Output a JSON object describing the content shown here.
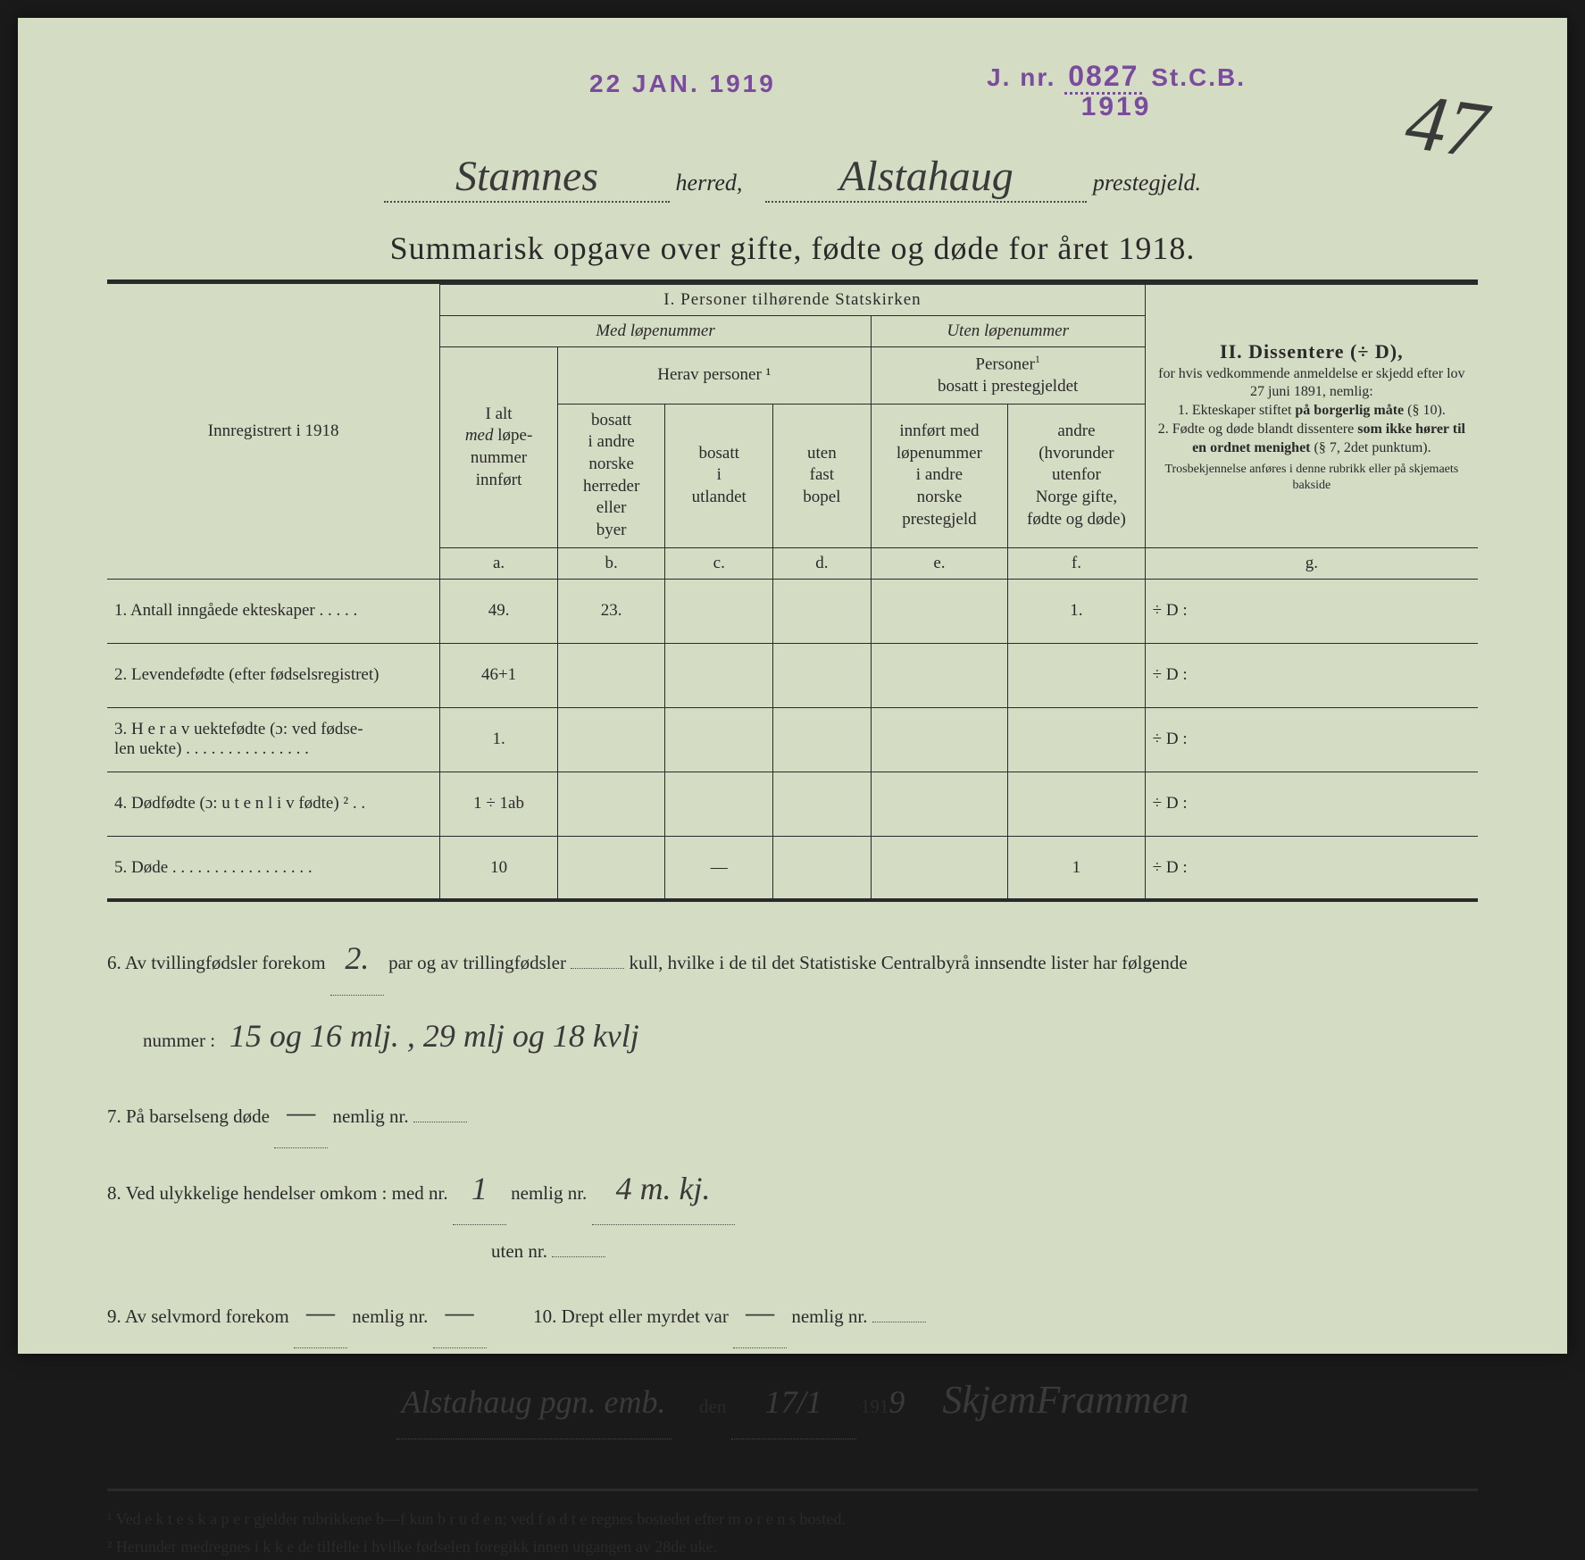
{
  "stamps": {
    "date": "22 JAN. 1919",
    "jnr_prefix": "J. nr.",
    "jnr_number": "0827",
    "jnr_suffix": "St.C.B.",
    "jnr_year": "1919"
  },
  "page_number": "47",
  "header": {
    "herred_value": "Stamnes",
    "herred_label": "herred,",
    "prestegjeld_value": "Alstahaug",
    "prestegjeld_label": "prestegjeld."
  },
  "title": "Summarisk opgave over gifte, fødte og døde for året 1918.",
  "table": {
    "section1_title": "I.  Personer tilhørende Statskirken",
    "section2_title": "II.  Dissentere (÷ D),",
    "med_lopen": "Med løpenummer",
    "uten_lopen": "Uten løpenummer",
    "innreg_label": "Innregistrert i 1918",
    "col_a_lines": "I alt\nmed løpe-\nnummer\ninnført",
    "herav_personer": "Herav personer ¹",
    "col_b": "bosatt\ni andre\nnorske\nherreder\neller\nbyer",
    "col_c": "bosatt\ni\nutlandet",
    "col_d": "uten\nfast\nbopel",
    "uten_personer": "Personer ¹\nbosatt i prestegjeldet",
    "col_e": "innført med\nløpenummer\ni andre\nnorske\nprestegjeld",
    "col_f": "andre\n(hvorunder\nutenfor\nNorge gifte,\nfødte og døde)",
    "dissenter_text": "for hvis vedkommende anmeldelse er skjedd efter lov 27 juni 1891, nemlig:\n1. Ekteskaper stiftet på borgerlig måte (§ 10).\n2. Fødte og døde blandt dissentere som ikke hører til en ordnet menighet (§ 7, 2det punktum).\nTrosbekjennelse anføres i denne rubrikk eller på skjemaets bakside",
    "col_letters": [
      "a.",
      "b.",
      "c.",
      "d.",
      "e.",
      "f.",
      "g."
    ],
    "rows": [
      {
        "num": "1.",
        "label": "Antall inngåede ekteskaper . . . . .",
        "a": "49.",
        "b": "23.",
        "c": "",
        "d": "",
        "e": "",
        "f": "1.",
        "g": "÷ D :"
      },
      {
        "num": "2.",
        "label": "Levendefødte (efter fødselsregistret)",
        "a": "46+1",
        "b": "",
        "c": "",
        "d": "",
        "e": "",
        "f": "",
        "g": "÷ D :"
      },
      {
        "num": "3.",
        "label": "H e r a v uektefødte (ɔ: ved fødse-\nlen uekte) . . . . . . . . . . . . . . .",
        "a": "1.",
        "b": "",
        "c": "",
        "d": "",
        "e": "",
        "f": "",
        "g": "÷ D :"
      },
      {
        "num": "4.",
        "label": "Dødfødte (ɔ: u t e n  l i v  fødte) ² . .",
        "a": "1 ÷ 1ab",
        "b": "",
        "c": "",
        "d": "",
        "e": "",
        "f": "",
        "g": "÷ D :"
      },
      {
        "num": "5.",
        "label": "Døde . . . . . . . . . . . . . . . . .",
        "a": "10",
        "b": "",
        "c": "—",
        "d": "",
        "e": "",
        "f": "1",
        "g": "÷ D :"
      }
    ]
  },
  "lower": {
    "l6a": "6.  Av tvillingfødsler forekom",
    "l6_twins": "2.",
    "l6b": "par og av trillingfødsler",
    "l6_trip": "",
    "l6c": "kull, hvilke i de til det Statistiske Centralbyrå innsendte lister har følgende",
    "l6d": "nummer :",
    "l6_hand": "15 og 16 mlj. ,   29 mlj og 18 kvlj",
    "l7": "7.  På barselseng døde",
    "l7_v1": "—",
    "l7b": "nemlig nr.",
    "l7_v2": "",
    "l8": "8.  Ved ulykkelige hendelser omkom :  med nr.",
    "l8_v1": "1",
    "l8b": "nemlig nr.",
    "l8_v2": "4 m. kj.",
    "l8c": "uten nr.",
    "l8_v3": "",
    "l9a": "9.  Av selvmord forekom",
    "l9_v1": "—",
    "l9b": "nemlig nr.",
    "l9_v2": "—",
    "l10a": "10.  Drept eller myrdet var",
    "l10_v1": "—",
    "l10b": "nemlig nr.",
    "l10_v2": "",
    "place": "Alstahaug pgn. emb.",
    "den": "den",
    "date_val": "17/1",
    "year_prefix": "191",
    "year_suffix": "9",
    "signature": "SkjemFrammen"
  },
  "footnotes": {
    "f1": "¹  Ved e k t e s k a p e r gjelder rubrikkene b—f kun b r u d e n; ved f ø d t e regnes bostedet efter m o r e n s bosted.",
    "f2": "²  Herunder medregnes i k k e de tilfelle i hvilke fødselen foregikk innen utgangen av 28de uke."
  },
  "colors": {
    "paper_bg": "#d5dcc4",
    "ink": "#2a2a2a",
    "stamp_purple": "#7a4b9e",
    "handwriting": "#3a3a3a"
  }
}
